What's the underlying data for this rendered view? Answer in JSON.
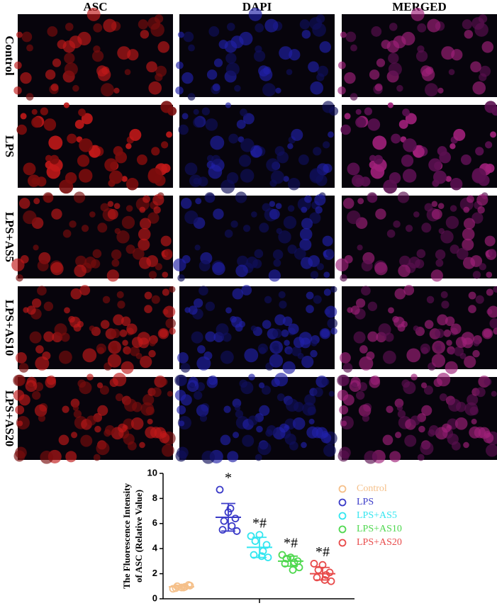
{
  "panels": {
    "columns": [
      "ASC",
      "DAPI",
      "MERGED"
    ],
    "rows": [
      "Control",
      "LPS",
      "LPS+AS5",
      "LPS+AS10",
      "LPS+AS20"
    ]
  },
  "chart_data": {
    "type": "dot",
    "ylabel": [
      "The Fluorescence Intensity",
      "of ASC (Relative Value)"
    ],
    "ylim": [
      0,
      10
    ],
    "yticks": [
      0,
      2,
      4,
      6,
      8,
      10
    ],
    "series": [
      {
        "name": "Control",
        "color": "#f5c08a",
        "values": [
          0.8,
          0.9,
          1.0,
          1.1,
          0.95,
          0.85,
          1.05,
          0.9
        ],
        "mean": 0.95,
        "sd": 0.12
      },
      {
        "name": "LPS",
        "color": "#3b3bc8",
        "values": [
          8.7,
          6.9,
          6.2,
          6.4,
          5.8,
          5.5,
          5.4,
          7.2
        ],
        "mean": 6.5,
        "sd": 1.1,
        "annotation": "*"
      },
      {
        "name": "LPS+AS5",
        "color": "#33e6f0",
        "values": [
          5.0,
          5.1,
          4.6,
          4.3,
          3.8,
          3.5,
          3.3,
          3.4
        ],
        "mean": 4.1,
        "sd": 0.8,
        "annotation": "*#"
      },
      {
        "name": "LPS+AS10",
        "color": "#4fd84f",
        "values": [
          3.5,
          3.3,
          3.2,
          3.0,
          2.9,
          2.8,
          2.5,
          2.3
        ],
        "mean": 3.0,
        "sd": 0.4,
        "annotation": "*#"
      },
      {
        "name": "LPS+AS20",
        "color": "#e84a4a",
        "values": [
          2.8,
          2.7,
          2.3,
          2.1,
          1.9,
          1.7,
          1.4,
          1.5
        ],
        "mean": 2.0,
        "sd": 0.5,
        "annotation": "*#"
      }
    ]
  }
}
